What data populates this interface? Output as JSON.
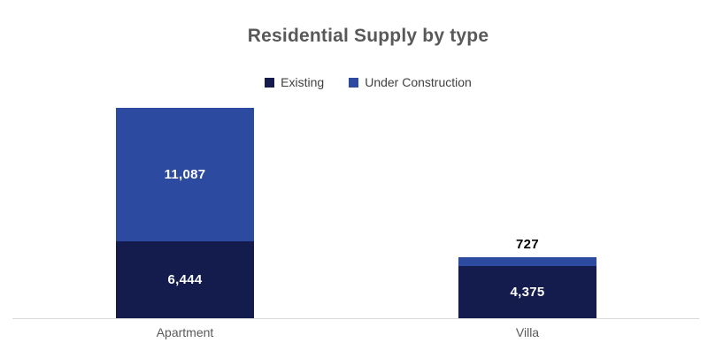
{
  "chart_data": {
    "type": "bar",
    "stacked": true,
    "title": "Residential Supply by type",
    "legend_position": "top",
    "grid": false,
    "ylim": [
      0,
      17531
    ],
    "categories": [
      "Apartment",
      "Villa"
    ],
    "series": [
      {
        "name": "Existing",
        "color": "#141b4d"
      },
      {
        "name": "Under Construction",
        "color": "#2b4aa0"
      }
    ],
    "bars": [
      {
        "category": "Apartment",
        "total": 17531,
        "segments": [
          {
            "series": "Existing",
            "value": 6444,
            "label": "6,444",
            "label_position": "inside"
          },
          {
            "series": "Under Construction",
            "value": 11087,
            "label": "11,087",
            "label_position": "inside"
          }
        ]
      },
      {
        "category": "Villa",
        "total": 5102,
        "segments": [
          {
            "series": "Existing",
            "value": 4375,
            "label": "4,375",
            "label_position": "inside"
          },
          {
            "series": "Under Construction",
            "value": 727,
            "label": "727",
            "label_position": "above"
          }
        ]
      }
    ],
    "colors": {
      "background": "#ffffff",
      "title_text": "#595959",
      "legend_text": "#404040",
      "inside_label_text": "#ffffff",
      "above_label_text": "#000000",
      "category_label_text": "#595959",
      "axis_line": "#d9d9d9"
    }
  }
}
